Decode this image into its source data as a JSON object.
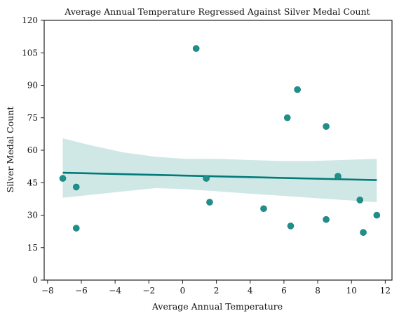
{
  "chart_data": {
    "type": "scatter",
    "title": "Average Annual Temperature Regressed Against Silver Medal Count",
    "xlabel": "Average Annual Temperature",
    "ylabel": "Silver Medal Count",
    "xlim": [
      -8.2,
      12.4
    ],
    "ylim": [
      0,
      120
    ],
    "x_ticks": [
      -8,
      -6,
      -4,
      -2,
      0,
      2,
      4,
      6,
      8,
      10,
      12
    ],
    "x_tick_labels": [
      "−8",
      "−6",
      "−4",
      "−2",
      "0",
      "2",
      "4",
      "6",
      "8",
      "10",
      "12"
    ],
    "y_ticks": [
      0,
      15,
      30,
      45,
      60,
      75,
      90,
      105,
      120
    ],
    "y_tick_labels": [
      "0",
      "15",
      "30",
      "45",
      "60",
      "75",
      "90",
      "105",
      "120"
    ],
    "grid": false,
    "colors": {
      "points": "#1f8f8a",
      "regression_line": "#007b78",
      "confidence_band": "#cfe8e6"
    },
    "points": {
      "x": [
        -7.1,
        -6.3,
        -6.3,
        0.8,
        1.4,
        1.6,
        4.8,
        6.2,
        6.4,
        6.8,
        8.5,
        8.5,
        9.2,
        10.5,
        10.7,
        11.5
      ],
      "y": [
        47,
        43,
        24,
        107,
        47,
        36,
        33,
        75,
        25,
        88,
        71,
        28,
        48,
        37,
        22,
        30
      ]
    },
    "regression": {
      "x": [
        -7.1,
        11.5
      ],
      "y": [
        49.6,
        46.2
      ]
    },
    "confidence_band": {
      "x": [
        -7.1,
        -5.3,
        -3.5,
        -1.6,
        0.2,
        2.1,
        3.9,
        5.8,
        7.6,
        9.5,
        11.5
      ],
      "upper": [
        65.5,
        62,
        59,
        57,
        56,
        56,
        55.5,
        55,
        55,
        55.5,
        56
      ],
      "lower": [
        38,
        39.5,
        41,
        42.5,
        42,
        41,
        40,
        39,
        38,
        37,
        36
      ]
    }
  }
}
